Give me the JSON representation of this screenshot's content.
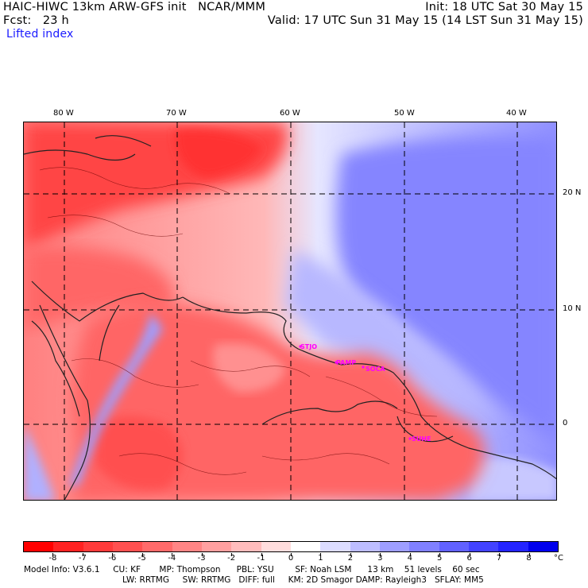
{
  "header": {
    "left1": "HAIC-HIWC 13km ARW-GFS init   NCAR/MMM",
    "right1": "Init: 18 UTC Sat 30 May 15",
    "left2": "Fcst:   23 h",
    "right2": "Valid: 17 UTC Sun 31 May 15 (14 LST Sun 31 May 15)",
    "field": "Lifted index"
  },
  "map": {
    "lon_labels": [
      "80 W",
      "70 W",
      "60 W",
      "50 W",
      "40 W"
    ],
    "lat_labels": [
      "20 N",
      "10 N",
      "0"
    ],
    "cities": [
      "STJO",
      "PAMP",
      "SOCA",
      "SUHE"
    ]
  },
  "colorbar": {
    "labels": [
      "-8",
      "-7",
      "-6",
      "-5",
      "-4",
      "-3",
      "-2",
      "-1",
      "0",
      "1",
      "2",
      "3",
      "4",
      "5",
      "6",
      "7",
      "8"
    ],
    "unit": "°C",
    "colors": [
      "#ff0000",
      "#ff2222",
      "#ff3b3b",
      "#ff5050",
      "#ff6a6a",
      "#ff8585",
      "#ffa0a0",
      "#ffbcbc",
      "#ffdddd",
      "#ffffff",
      "#dcdcff",
      "#bdbdff",
      "#9e9eff",
      "#8080ff",
      "#6161ff",
      "#4343ff",
      "#2424ff",
      "#0000ee"
    ]
  },
  "footer": {
    "line1": "Model Info: V3.6.1     CU: KF       MP: Thompson      PBL: YSU        SF: Noah LSM      13 km    51 levels    60 sec",
    "line2": "LW: RRTMG     SW: RRTMG   DIFF: full     KM: 2D Smagor DAMP: Rayleigh3   SFLAY: MM5"
  }
}
